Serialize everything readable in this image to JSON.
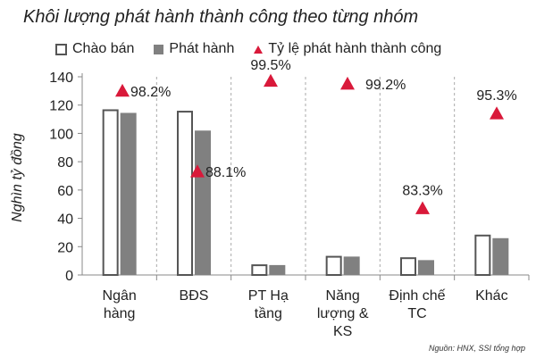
{
  "chart_data": {
    "type": "bar",
    "title": "Khôi lượng phát hành thành công theo từng nhóm",
    "ylabel": "Nghìn tỷ đồng",
    "xlabel": "",
    "ylim": [
      0,
      140
    ],
    "yticks": [
      0,
      20,
      40,
      60,
      80,
      100,
      120,
      140
    ],
    "grid": false,
    "legend_position": "top",
    "categories": [
      [
        "Ngân",
        "hàng"
      ],
      [
        "BĐS"
      ],
      [
        "PT  Hạ",
        "tầng"
      ],
      [
        "Năng",
        "lượng &",
        "KS"
      ],
      [
        "Định chế",
        "TC"
      ],
      [
        "Khác"
      ]
    ],
    "series": [
      {
        "name": "Chào bán",
        "kind": "bar",
        "style": "outline",
        "color": "#555555",
        "values": [
          117,
          116,
          7.5,
          13.5,
          12.5,
          28.5
        ]
      },
      {
        "name": "Phát hành",
        "kind": "bar",
        "style": "filled",
        "color": "#808080",
        "values": [
          114.5,
          102,
          7,
          13,
          10.5,
          26
        ]
      },
      {
        "name": "Tỷ lệ phát hành thành công",
        "kind": "marker",
        "marker": "triangle",
        "color": "#D9193A",
        "values": [
          98.2,
          88.1,
          99.5,
          99.2,
          83.3,
          95.3
        ],
        "labels": [
          "98.2%",
          "88.1%",
          "99.5%",
          "99.2%",
          "83.3%",
          "95.3%"
        ],
        "marker_y_on_left_axis": [
          130,
          73,
          137,
          135,
          47,
          114
        ]
      }
    ]
  },
  "source_note": "Nguồn: HNX, SSI tổng hợp"
}
